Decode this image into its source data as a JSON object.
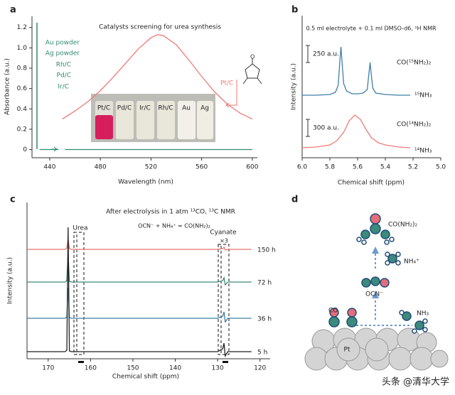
{
  "chart_data": [
    {
      "type": "line",
      "panel_label": "a",
      "title": "Catalysts screening for urea synthesis",
      "x_label": "Wavelength (nm)",
      "y_label": "Absorbance (a.u.)",
      "xlim": [
        426,
        604
      ],
      "ylim": [
        -0.08,
        1.31
      ],
      "xticks": [
        440,
        480,
        520,
        560,
        600
      ],
      "yticks": [
        0,
        0.2,
        0.4,
        0.6,
        0.8,
        {
          "value": 1,
          "label": "1.0"
        },
        1.2
      ],
      "catalysts": [
        "Au powder",
        "Ag powder",
        "Rh/C",
        "Pd/C",
        "Ir/C"
      ],
      "annotation": "Pt/C",
      "vials": [
        "Pt/C",
        "Pd/C",
        "Ir/C",
        "Rh/C",
        "Au",
        "Ag"
      ],
      "series": [
        {
          "color": "#ef7a76",
          "x": [
            450,
            460,
            470,
            480,
            490,
            500,
            510,
            520,
            525,
            530,
            540,
            550,
            560,
            570,
            580,
            590,
            600
          ],
          "values": [
            0.3,
            0.38,
            0.47,
            0.58,
            0.71,
            0.85,
            0.99,
            1.1,
            1.13,
            1.12,
            1.03,
            0.88,
            0.72,
            0.57,
            0.45,
            0.36,
            0.3
          ]
        },
        {
          "color": "#2f8a6f",
          "x": [
            432,
            447,
            449,
            452,
            600
          ],
          "values": [
            0,
            0,
            null,
            0,
            0
          ]
        }
      ]
    },
    {
      "type": "line",
      "panel_label": "b",
      "title": "0.5 ml electrolyte + 0.1 ml DMSO-d6, ¹H NMR",
      "x_label": "Chemical shift (ppm)",
      "y_label": "Intensity (a.u.)",
      "xlim": [
        6,
        5
      ],
      "ylim": [
        0,
        10
      ],
      "xticks": [
        {
          "value": 6,
          "label": "6.0"
        },
        5.8,
        5.6,
        5.4,
        5.2,
        {
          "value": 5,
          "label": "5.0"
        }
      ],
      "scale_bars": [
        "250 a.u.",
        "300 a.u."
      ],
      "labels": [
        "CO(¹⁵NH₂)₂",
        "¹⁵NH₃",
        "CO(¹⁴NH₂)₂",
        "¹⁴NH₃"
      ],
      "series": [
        {
          "color": "#3d7fa6",
          "x": [
            6.0,
            5.9,
            5.8,
            5.76,
            5.74,
            5.73,
            5.72,
            5.71,
            5.7,
            5.68,
            5.64,
            5.6,
            5.56,
            5.53,
            5.52,
            5.51,
            5.5,
            5.49,
            5.47,
            5.4,
            5.3,
            5.22
          ],
          "values": [
            4.4,
            4.4,
            4.45,
            4.6,
            5.1,
            6.5,
            7.8,
            6.4,
            5.2,
            4.7,
            4.5,
            4.5,
            4.55,
            4.8,
            5.8,
            6.7,
            5.7,
            4.9,
            4.55,
            4.45,
            4.4,
            4.4
          ]
        },
        {
          "color": "#ec7d77",
          "x": [
            6.0,
            5.9,
            5.8,
            5.75,
            5.7,
            5.66,
            5.62,
            5.58,
            5.54,
            5.5,
            5.45,
            5.4,
            5.3,
            5.22
          ],
          "values": [
            0.7,
            0.75,
            0.9,
            1.2,
            1.8,
            2.6,
            3.0,
            2.7,
            2.0,
            1.4,
            1.05,
            0.9,
            0.75,
            0.7
          ]
        }
      ]
    },
    {
      "type": "line",
      "panel_label": "c",
      "title": "After electrolysis in 1 atm ¹³CO, ¹³C NMR",
      "subtitle": "OCN⁻ + NH₄⁺ = CO(NH₂)₂",
      "x_label": "Chemical shift (ppm)",
      "y_label": "Intensity (a.u.)",
      "xlim": [
        175,
        117.6
      ],
      "ylim": [
        0,
        220
      ],
      "xticks": [
        170,
        160,
        150,
        140,
        130,
        120
      ],
      "time_labels": [
        "150 h",
        "72 h",
        "36 h",
        "5 h"
      ],
      "annotations": [
        "Urea",
        "Cyanate",
        "×3"
      ],
      "x": [
        175,
        166,
        165.6,
        165.3,
        165.0,
        164.5,
        130,
        128.8,
        128.5,
        128.2,
        127.6,
        122
      ],
      "series": [
        {
          "color": "#e8736f",
          "values": [
            154,
            154,
            156,
            169,
            155,
            154,
            154,
            155,
            157,
            153,
            154,
            154
          ]
        },
        {
          "color": "#3c8a7c",
          "values": [
            108,
            108,
            110,
            150,
            109,
            108,
            108,
            110,
            114,
            104,
            108,
            108
          ]
        },
        {
          "color": "#3d7fa6",
          "values": [
            57,
            57,
            59,
            100,
            58,
            57,
            57,
            60,
            66,
            52,
            57,
            57
          ]
        },
        {
          "color": "#222222",
          "values": [
            10,
            10,
            12,
            185,
            11,
            10,
            10,
            14,
            22,
            4,
            10,
            10
          ]
        }
      ]
    }
  ],
  "diagram": {
    "panel_label": "d",
    "urea": "CO(NH₂)₂",
    "ammonium": "NH₄⁺",
    "cyanate": "OCN⁻",
    "co": "CO",
    "ammonia": "NH₃",
    "surface": "Pt"
  },
  "watermark": "头条 @清华大学"
}
